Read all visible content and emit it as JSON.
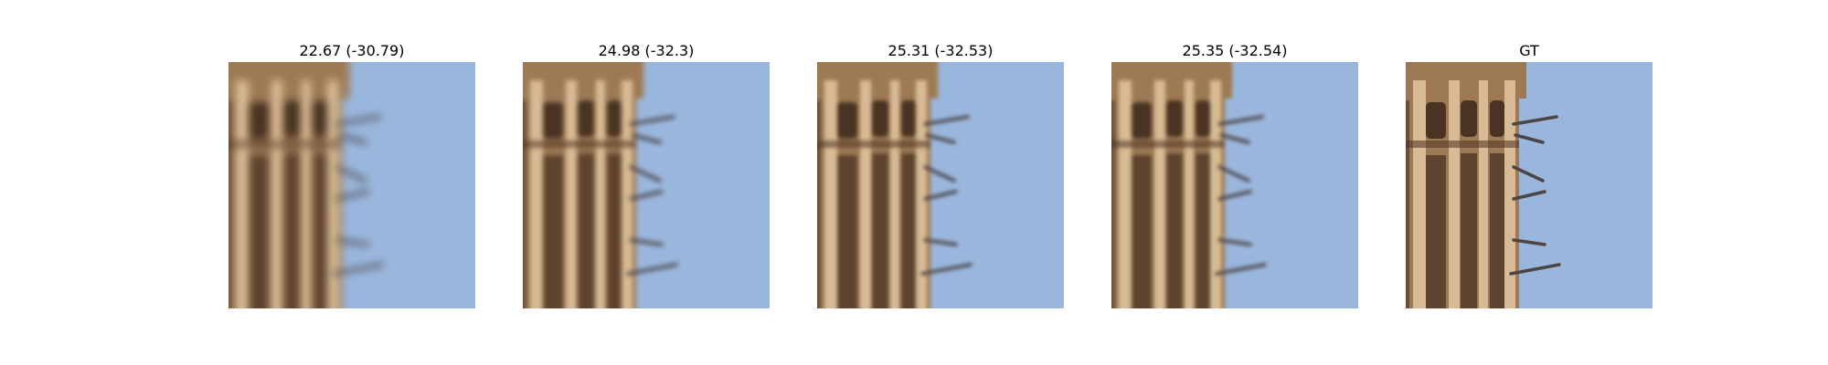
{
  "figure": {
    "panels": [
      {
        "title": "22.67 (-30.79)"
      },
      {
        "title": "24.98 (-32.3)"
      },
      {
        "title": "25.31 (-32.53)"
      },
      {
        "title": "25.35 (-32.54)"
      },
      {
        "title": "GT"
      }
    ],
    "colors": {
      "sky": "#99b6dc",
      "tower": "#9d7a55",
      "tower_highlight": "#d8bb94",
      "tower_shadow": "#4a3322",
      "spikes": "#4c4548"
    }
  }
}
